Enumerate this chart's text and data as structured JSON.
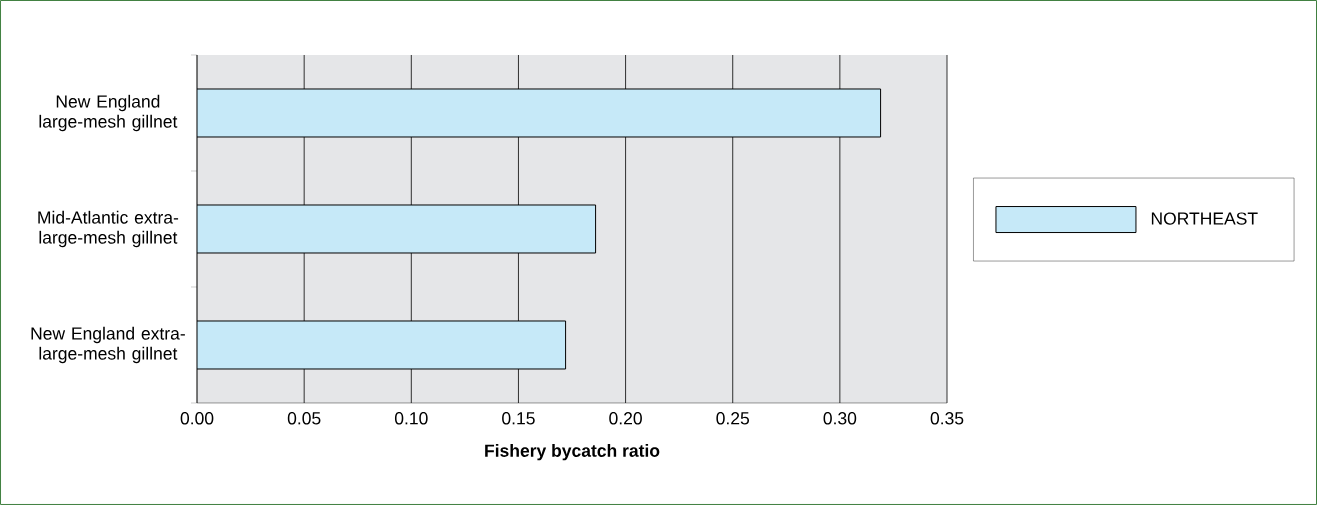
{
  "chart_data": {
    "type": "bar",
    "orientation": "horizontal",
    "categories": [
      "New England large-mesh gillnet",
      "Mid-Atlantic extra-large-mesh gillnet",
      "New England extra-large-mesh gillnet"
    ],
    "series": [
      {
        "name": "NORTHEAST",
        "color": "#c6e9f8",
        "values": [
          0.319,
          0.186,
          0.172
        ]
      }
    ],
    "xlabel": "Fishery bycatch ratio",
    "xlim": [
      0,
      0.35
    ],
    "xticks": [
      {
        "value": 0,
        "label": "0.00"
      },
      {
        "value": 0.05,
        "label": "0.05"
      },
      {
        "value": 0.1,
        "label": "0.10"
      },
      {
        "value": 0.15,
        "label": "0.15"
      },
      {
        "value": 0.2,
        "label": "0.20"
      },
      {
        "value": 0.25,
        "label": "0.25"
      },
      {
        "value": 0.3,
        "label": "0.30"
      },
      {
        "value": 0.35,
        "label": "0.35"
      }
    ],
    "grid": "x",
    "legend": "right"
  }
}
